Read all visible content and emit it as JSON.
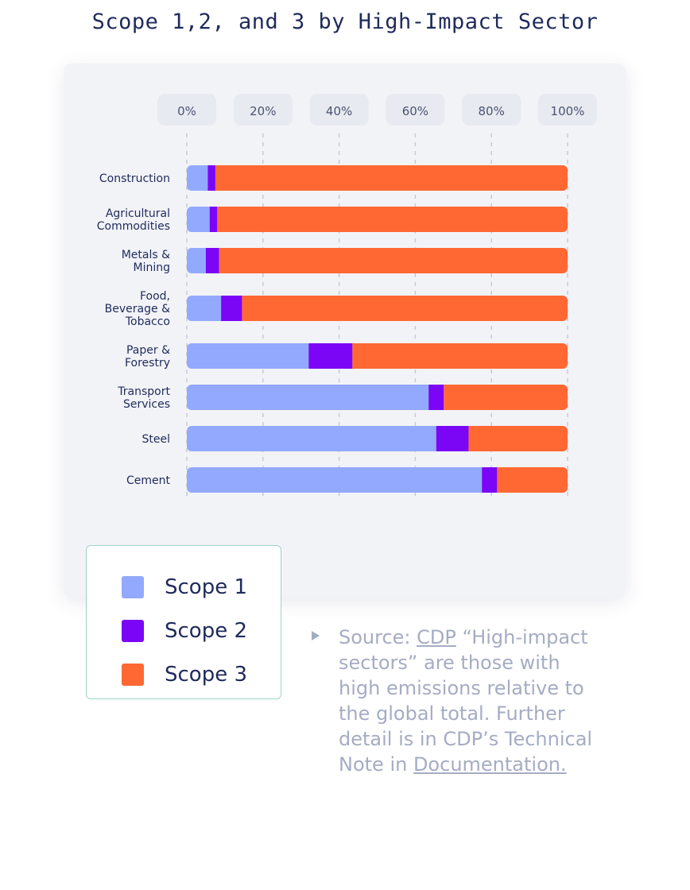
{
  "chart_data": {
    "type": "bar",
    "orientation": "horizontal",
    "stacked": true,
    "title": "Scope 1,2, and 3 by High-Impact Sector",
    "xticks": [
      "0%",
      "20%",
      "40%",
      "60%",
      "80%",
      "100%"
    ],
    "xlim": [
      0,
      100
    ],
    "grid": true,
    "categories": [
      "Construction",
      "Agricultural Commodities",
      "Metals & Mining",
      "Food, Beverage & Tobacco",
      "Paper & Forestry",
      "Transport Services",
      "Steel",
      "Cement"
    ],
    "series": [
      {
        "name": "Scope 1",
        "color": "#93a9fd",
        "values": [
          5.5,
          6,
          5,
          9,
          32,
          63.5,
          65.5,
          77.5
        ]
      },
      {
        "name": "Scope 2",
        "color": "#7b06f5",
        "values": [
          2,
          2,
          3.5,
          5.5,
          11.5,
          4,
          8.5,
          4
        ]
      },
      {
        "name": "Scope 3",
        "color": "#ff6833",
        "values": [
          92.5,
          92,
          91.5,
          85.5,
          56.5,
          32.5,
          26,
          18.5
        ]
      }
    ],
    "legend_position": "bottom-left"
  },
  "note": {
    "source_prefix": "Source: ",
    "source_link": "CDP",
    "body": "“High-impact sectors” are those with high emissions relative to the global total. Further detail is in CDP’s Technical Note in ",
    "doc_link": "Documentation."
  }
}
